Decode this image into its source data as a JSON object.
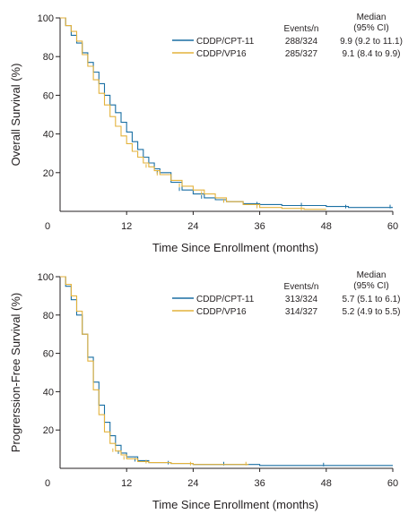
{
  "chart_data": [
    {
      "type": "line",
      "title": "",
      "xlabel": "Time Since Enrollment (months)",
      "ylabel": "Overall Survival (%)",
      "xlim": [
        0,
        60
      ],
      "ylim": [
        0,
        100
      ],
      "xticks": [
        "0",
        "12",
        "24",
        "36",
        "48",
        "60"
      ],
      "yticks": [
        "20",
        "40",
        "60",
        "80",
        "100"
      ],
      "grid": false,
      "legend_position": "top-right",
      "table_headers": {
        "events": "Events/n",
        "median": "Median",
        "median_ci": "(95% CI)"
      },
      "series": [
        {
          "name": "CDDP/CPT-11",
          "color": "#1a6fa3",
          "events": "288/324",
          "median": "9.9 (9.2 to 11.1)",
          "x": [
            0,
            1,
            2,
            3,
            4,
            5,
            6,
            7,
            8,
            9,
            10,
            11,
            12,
            13,
            14,
            15,
            16,
            17,
            18,
            20,
            22,
            24,
            26,
            28,
            30,
            33,
            36,
            40,
            44,
            48,
            52,
            56,
            60
          ],
          "y": [
            100,
            96,
            91,
            87,
            82,
            77,
            72,
            66,
            60,
            55,
            51,
            46,
            41,
            36,
            32,
            28,
            25,
            22,
            20,
            15,
            11,
            9,
            7,
            6,
            5,
            4,
            3.5,
            3,
            3,
            2.5,
            2,
            2,
            2
          ]
        },
        {
          "name": "CDDP/VP16",
          "color": "#e3b23c",
          "events": "285/327",
          "median": "9.1 (8.4 to 9.9)",
          "x": [
            0,
            1,
            2,
            3,
            4,
            5,
            6,
            7,
            8,
            9,
            10,
            11,
            12,
            13,
            14,
            15,
            16,
            17,
            18,
            20,
            22,
            24,
            26,
            28,
            30,
            33,
            36,
            40,
            44,
            48
          ],
          "y": [
            100,
            96,
            93,
            88,
            81,
            75,
            68,
            61,
            55,
            49,
            44,
            39,
            35,
            31,
            28,
            25,
            23,
            21,
            19,
            16,
            13,
            11,
            9,
            7,
            5,
            3.5,
            2,
            1.5,
            1,
            1
          ]
        }
      ]
    },
    {
      "type": "line",
      "title": "",
      "xlabel": "Time Since Enrollment (months)",
      "ylabel": "Progrerssion-Free Survival (%)",
      "xlim": [
        0,
        60
      ],
      "ylim": [
        0,
        100
      ],
      "xticks": [
        "0",
        "12",
        "24",
        "36",
        "48",
        "60"
      ],
      "yticks": [
        "20",
        "40",
        "60",
        "80",
        "100"
      ],
      "grid": false,
      "legend_position": "top-right",
      "table_headers": {
        "events": "Events/n",
        "median": "Median",
        "median_ci": "(95% CI)"
      },
      "series": [
        {
          "name": "CDDP/CPT-11",
          "color": "#1a6fa3",
          "events": "313/324",
          "median": "5.7 (5.1 to 6.1)",
          "x": [
            0,
            1,
            2,
            3,
            4,
            5,
            6,
            7,
            8,
            9,
            10,
            11,
            12,
            14,
            16,
            20,
            24,
            30,
            36,
            48,
            60
          ],
          "y": [
            100,
            95,
            88,
            80,
            70,
            58,
            45,
            33,
            24,
            17,
            12,
            8,
            6,
            4,
            3,
            2.5,
            2,
            2,
            1.5,
            1.5,
            1.5
          ]
        },
        {
          "name": "CDDP/VP16",
          "color": "#e3b23c",
          "events": "314/327",
          "median": "5.2 (4.9 to 5.5)",
          "x": [
            0,
            1,
            2,
            3,
            4,
            5,
            6,
            7,
            8,
            9,
            10,
            11,
            12,
            14,
            16,
            20,
            24,
            30,
            34
          ],
          "y": [
            100,
            96,
            90,
            82,
            70,
            56,
            41,
            28,
            19,
            13,
            9,
            7,
            5,
            3.5,
            3,
            2.5,
            2,
            2,
            2
          ]
        }
      ]
    }
  ]
}
